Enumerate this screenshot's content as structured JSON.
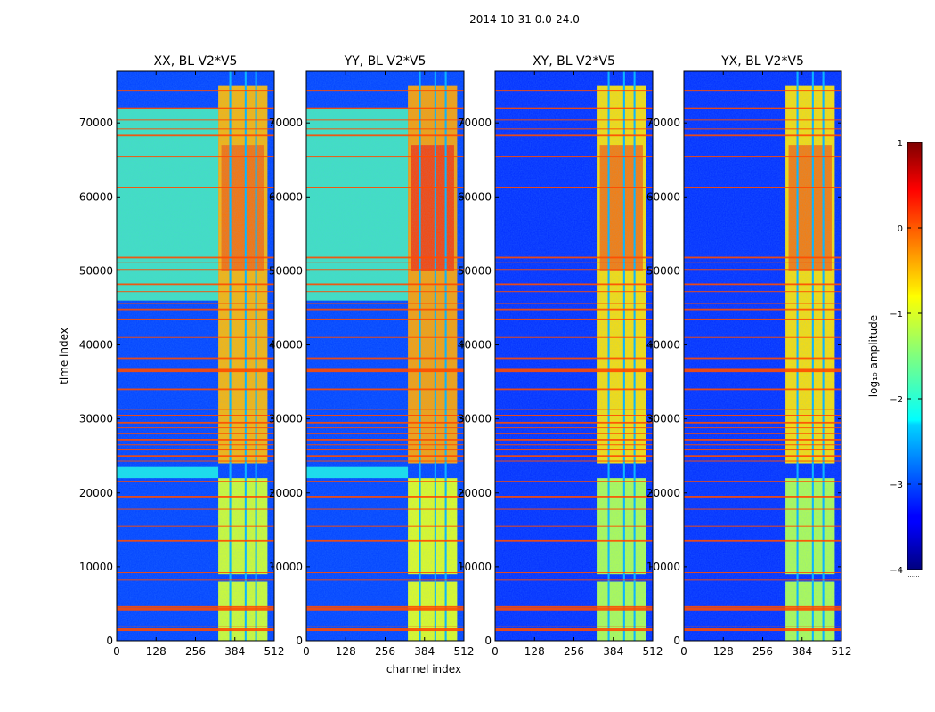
{
  "chart_data": {
    "type": "heatmap",
    "suptitle": "2014-10-31 0.0-24.0",
    "xlabel": "channel index",
    "ylabel": "time index",
    "xlim": [
      0,
      512
    ],
    "ylim": [
      0,
      77000
    ],
    "xticks": [
      0,
      128,
      256,
      384,
      512
    ],
    "yticks": [
      0,
      10000,
      20000,
      30000,
      40000,
      50000,
      60000,
      70000
    ],
    "colormap": "jet",
    "colorbar": {
      "label": "log₁₀ amplitude",
      "ticks": [
        1,
        0,
        -1,
        -2,
        -3,
        -4
      ],
      "tick_labels": [
        "1",
        "0",
        "−1",
        "−2",
        "−3",
        "−4"
      ],
      "vmin": -4,
      "vmax": 1,
      "under_label": "......"
    },
    "panels": [
      {
        "title": "XX, BL V2*V5",
        "pol": "XX",
        "show_ylabel": true
      },
      {
        "title": "YY, BL V2*V5",
        "pol": "YY",
        "show_xlabel": true
      },
      {
        "title": "XY, BL V2*V5",
        "pol": "XY"
      },
      {
        "title": "YX, BL V2*V5",
        "pol": "YX"
      }
    ],
    "structure": {
      "background_level": -3.2,
      "strong_band_channels": [
        330,
        490
      ],
      "strong_band_rows_active": [
        [
          0,
          8000
        ],
        [
          9000,
          22000
        ],
        [
          24000,
          75000
        ]
      ],
      "band_gaps_channels": [
        [
          366,
          372
        ],
        [
          416,
          422
        ],
        [
          450,
          456
        ]
      ],
      "flagged_rows": [
        1500,
        1900,
        4300,
        4600,
        8200,
        9200,
        13500,
        15500,
        17800,
        19500,
        21500,
        24300,
        25000,
        25800,
        26500,
        27200,
        28000,
        28800,
        29500,
        30500,
        31300,
        34000,
        36500,
        36700,
        38200,
        41000,
        43500,
        44800,
        45600,
        47200,
        48200,
        50200,
        51100,
        51800,
        61300,
        65500,
        68300,
        69200,
        70400,
        72000,
        74400
      ],
      "elevated_diag_rows": [
        [
          46000,
          72000,
          -1.8
        ],
        [
          22000,
          23500,
          -2.1
        ]
      ]
    }
  }
}
